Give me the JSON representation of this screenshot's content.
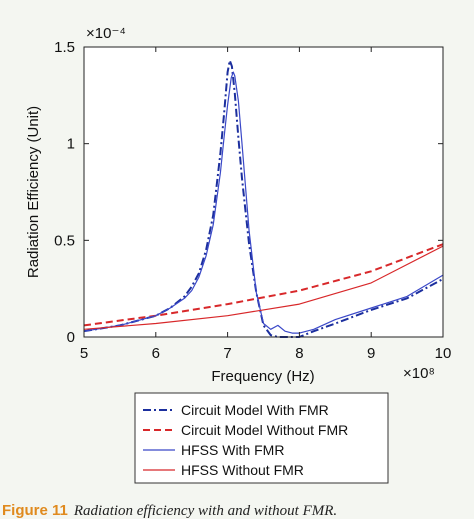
{
  "chart_data": {
    "type": "line",
    "xlabel": "Frequency (Hz)",
    "ylabel": "Radiation Efficiency (Unit)",
    "x_exponent_label": "×10⁸",
    "y_exponent_label": "×10⁻⁴",
    "xlim": [
      5,
      10
    ],
    "ylim": [
      0,
      1.5
    ],
    "x_ticks": [
      "5",
      "6",
      "7",
      "8",
      "9",
      "10"
    ],
    "y_ticks": [
      "0",
      "0.5",
      "1",
      "1.5"
    ],
    "legend_position": "bottom-center-outside",
    "grid": false,
    "series": [
      {
        "name": "Circuit Model With FMR",
        "color": "#1c2f9e",
        "style": "dashdot",
        "x": [
          5.0,
          5.5,
          6.0,
          6.2,
          6.4,
          6.5,
          6.6,
          6.7,
          6.8,
          6.9,
          6.95,
          7.0,
          7.03,
          7.06,
          7.1,
          7.15,
          7.2,
          7.3,
          7.4,
          7.5,
          7.6,
          7.7,
          7.8,
          7.9,
          8.0,
          8.2,
          8.5,
          9.0,
          9.5,
          10.0
        ],
        "y": [
          0.03,
          0.06,
          0.11,
          0.15,
          0.21,
          0.26,
          0.33,
          0.45,
          0.63,
          0.95,
          1.15,
          1.37,
          1.43,
          1.4,
          1.26,
          1.03,
          0.82,
          0.48,
          0.23,
          0.06,
          0.01,
          0.0,
          0.0,
          0.0,
          0.0,
          0.03,
          0.07,
          0.14,
          0.2,
          0.3
        ]
      },
      {
        "name": "Circuit Model Without FMR",
        "color": "#d8282a",
        "style": "dashed",
        "x": [
          5.0,
          6.0,
          7.0,
          8.0,
          9.0,
          10.0
        ],
        "y": [
          0.06,
          0.11,
          0.17,
          0.24,
          0.34,
          0.48
        ]
      },
      {
        "name": "HFSS With FMR",
        "color": "#3a48c8",
        "style": "solid",
        "x": [
          5.0,
          5.5,
          6.0,
          6.2,
          6.4,
          6.5,
          6.6,
          6.7,
          6.8,
          6.9,
          6.95,
          7.0,
          7.05,
          7.08,
          7.1,
          7.15,
          7.2,
          7.3,
          7.4,
          7.5,
          7.6,
          7.7,
          7.8,
          7.9,
          8.0,
          8.2,
          8.5,
          9.0,
          9.5,
          10.0
        ],
        "y": [
          0.03,
          0.06,
          0.11,
          0.15,
          0.2,
          0.24,
          0.31,
          0.42,
          0.58,
          0.85,
          1.03,
          1.2,
          1.34,
          1.37,
          1.35,
          1.22,
          1.0,
          0.55,
          0.23,
          0.07,
          0.04,
          0.06,
          0.03,
          0.02,
          0.02,
          0.04,
          0.09,
          0.15,
          0.21,
          0.32
        ]
      },
      {
        "name": "HFSS Without FMR",
        "color": "#d8282a",
        "style": "solid",
        "x": [
          5.0,
          6.0,
          7.0,
          8.0,
          9.0,
          10.0
        ],
        "y": [
          0.04,
          0.07,
          0.11,
          0.17,
          0.28,
          0.47
        ]
      }
    ]
  },
  "caption": {
    "label": "Figure 11",
    "text": "Radiation efficiency with and without FMR."
  }
}
